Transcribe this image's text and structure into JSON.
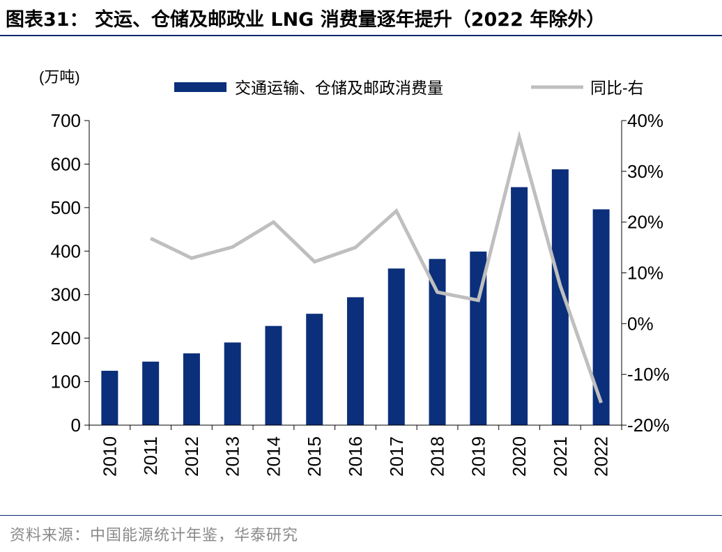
{
  "title": "图表31： 交运、仓储及邮政业 LNG 消费量逐年提升（2022 年除外）",
  "source": "资料来源：中国能源统计年鉴，华泰研究",
  "colors": {
    "bar": "#0b2f7a",
    "line": "#bfbfbf",
    "rule": "#0a2a6b"
  },
  "chart_data": {
    "type": "bar",
    "title": "交运、仓储及邮政业 LNG 消费量逐年提升（2022 年除外）",
    "unit_label": "(万吨)",
    "categories": [
      "2010",
      "2011",
      "2012",
      "2013",
      "2014",
      "2015",
      "2016",
      "2017",
      "2018",
      "2019",
      "2020",
      "2021",
      "2022"
    ],
    "series": [
      {
        "name": "交通运输、仓储及邮政消费量",
        "type": "bar",
        "axis": "left",
        "values": [
          125,
          146,
          165,
          190,
          228,
          256,
          294,
          360,
          382,
          399,
          547,
          588,
          496
        ]
      },
      {
        "name": "同比-右",
        "type": "line",
        "axis": "right",
        "values": [
          null,
          16.8,
          12.9,
          15.1,
          20.0,
          12.2,
          15.0,
          22.2,
          6.2,
          4.6,
          36.7,
          7.5,
          -15.6
        ]
      }
    ],
    "ylim_left": [
      0,
      700
    ],
    "yticks_left": [
      "0",
      "100",
      "200",
      "300",
      "400",
      "500",
      "600",
      "700"
    ],
    "ylim_right": [
      -20,
      40
    ],
    "yticks_right": [
      "-20%",
      "-10%",
      "0%",
      "10%",
      "20%",
      "30%",
      "40%"
    ],
    "legend_position": "top"
  }
}
